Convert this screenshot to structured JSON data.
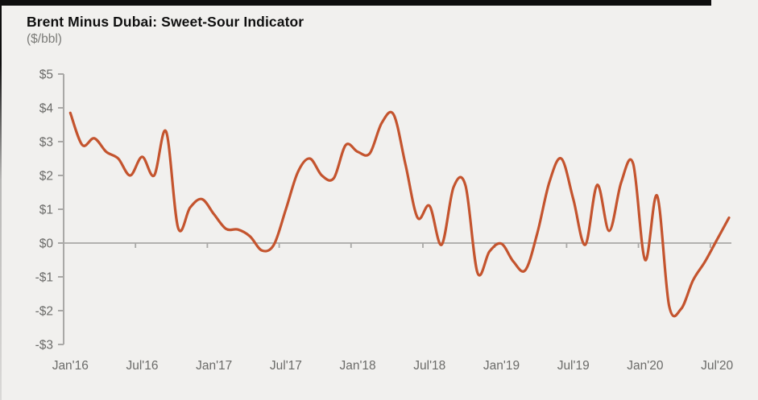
{
  "header": {
    "title": "Brent Minus Dubai: Sweet-Sour Indicator",
    "subtitle": "($/bbl)"
  },
  "colors": {
    "line": "#c4542e",
    "axis": "#a9a8a6",
    "tick_text": "#6b6b69",
    "background": "#f1f0ee",
    "top_rule": "#0e0e0e"
  },
  "chart_data": {
    "type": "line",
    "title": "Brent Minus Dubai: Sweet-Sour Indicator",
    "ylabel": "($/bbl)",
    "ylim": [
      -3,
      5
    ],
    "grid": false,
    "zero_line": true,
    "legend_position": "none",
    "y_ticks": [
      5,
      4,
      3,
      2,
      1,
      0,
      -1,
      -2,
      -3
    ],
    "y_tick_labels": [
      "$5",
      "$4",
      "$3",
      "$2",
      "$1",
      "$0",
      "-$1",
      "-$2",
      "-$3"
    ],
    "x_tick_labels": [
      "Jan'16",
      "Jul'16",
      "Jan'17",
      "Jul'17",
      "Jan'18",
      "Jul'18",
      "Jan'19",
      "Jul'19",
      "Jan'20",
      "Jul'20"
    ],
    "x": [
      "Jan'16",
      "Feb'16",
      "Mar'16",
      "Apr'16",
      "May'16",
      "Jun'16",
      "Jul'16",
      "Aug'16",
      "Sep'16",
      "Oct'16",
      "Nov'16",
      "Dec'16",
      "Jan'17",
      "Feb'17",
      "Mar'17",
      "Apr'17",
      "May'17",
      "Jun'17",
      "Jul'17",
      "Aug'17",
      "Sep'17",
      "Oct'17",
      "Nov'17",
      "Dec'17",
      "Jan'18",
      "Feb'18",
      "Mar'18",
      "Apr'18",
      "May'18",
      "Jun'18",
      "Jul'18",
      "Aug'18",
      "Sep'18",
      "Oct'18",
      "Nov'18",
      "Dec'18",
      "Jan'19",
      "Feb'19",
      "Mar'19",
      "Apr'19",
      "May'19",
      "Jun'19",
      "Jul'19",
      "Aug'19",
      "Sep'19",
      "Oct'19",
      "Nov'19",
      "Dec'19",
      "Jan'20",
      "Feb'20",
      "Mar'20",
      "Apr'20",
      "May'20",
      "Jun'20",
      "Jul'20",
      "Aug'20"
    ],
    "series": [
      {
        "name": "Brent minus Dubai spread",
        "color": "#c4542e",
        "values": [
          3.85,
          2.9,
          3.1,
          2.7,
          2.5,
          2.0,
          2.55,
          2.0,
          3.3,
          0.45,
          1.05,
          1.3,
          0.85,
          0.42,
          0.4,
          0.2,
          -0.22,
          -0.05,
          1.0,
          2.1,
          2.5,
          2.0,
          1.92,
          2.9,
          2.7,
          2.65,
          3.55,
          3.8,
          2.3,
          0.75,
          1.1,
          -0.05,
          1.65,
          1.7,
          -0.88,
          -0.25,
          -0.02,
          -0.55,
          -0.8,
          0.3,
          1.8,
          2.5,
          1.3,
          -0.05,
          1.72,
          0.36,
          1.8,
          2.35,
          -0.5,
          1.4,
          -1.85,
          -1.95,
          -1.1,
          -0.55,
          0.1,
          0.75
        ]
      }
    ]
  }
}
